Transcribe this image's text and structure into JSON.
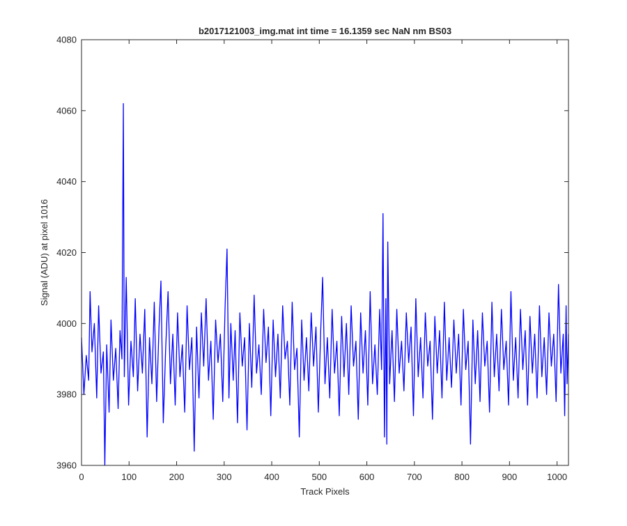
{
  "chart_data": {
    "type": "line",
    "title": "b2017121003_img.mat int time = 16.1359 sec  NaN nm BS03",
    "xlabel": "Track Pixels",
    "ylabel": "Signal (ADU) at pixel 1016",
    "xlim": [
      0,
      1024
    ],
    "ylim": [
      3960,
      4080
    ],
    "xticks": [
      0,
      100,
      200,
      300,
      400,
      500,
      600,
      700,
      800,
      900,
      1000
    ],
    "yticks": [
      3960,
      3980,
      4000,
      4020,
      4040,
      4060,
      4080
    ],
    "grid": false,
    "legend": "none",
    "series": [
      {
        "color": "#0000ff",
        "points": [
          [
            0,
            3996
          ],
          [
            5,
            3980
          ],
          [
            10,
            3991
          ],
          [
            15,
            3984
          ],
          [
            18,
            4009
          ],
          [
            22,
            3992
          ],
          [
            27,
            4000
          ],
          [
            32,
            3979
          ],
          [
            36,
            4005
          ],
          [
            41,
            3986
          ],
          [
            46,
            3992
          ],
          [
            49,
            3960
          ],
          [
            53,
            3994
          ],
          [
            58,
            3975
          ],
          [
            62,
            4001
          ],
          [
            67,
            3984
          ],
          [
            72,
            3993
          ],
          [
            77,
            3976
          ],
          [
            81,
            3998
          ],
          [
            85,
            3990
          ],
          [
            88,
            4062
          ],
          [
            90,
            3985
          ],
          [
            94,
            4013
          ],
          [
            99,
            3977
          ],
          [
            104,
            3995
          ],
          [
            109,
            3985
          ],
          [
            113,
            4007
          ],
          [
            118,
            3981
          ],
          [
            123,
            3997
          ],
          [
            128,
            3986
          ],
          [
            133,
            4004
          ],
          [
            138,
            3968
          ],
          [
            143,
            3996
          ],
          [
            148,
            3983
          ],
          [
            153,
            4006
          ],
          [
            158,
            3978
          ],
          [
            163,
            3999
          ],
          [
            167,
            4012
          ],
          [
            172,
            3972
          ],
          [
            177,
            3993
          ],
          [
            182,
            4009
          ],
          [
            187,
            3983
          ],
          [
            192,
            3997
          ],
          [
            197,
            3977
          ],
          [
            202,
            4003
          ],
          [
            207,
            3985
          ],
          [
            212,
            3994
          ],
          [
            217,
            3975
          ],
          [
            222,
            4005
          ],
          [
            227,
            3987
          ],
          [
            232,
            3996
          ],
          [
            237,
            3964
          ],
          [
            242,
            3999
          ],
          [
            247,
            3979
          ],
          [
            252,
            4003
          ],
          [
            257,
            3988
          ],
          [
            262,
            4007
          ],
          [
            267,
            3984
          ],
          [
            272,
            3995
          ],
          [
            277,
            3973
          ],
          [
            282,
            4001
          ],
          [
            287,
            3989
          ],
          [
            292,
            3997
          ],
          [
            297,
            3978
          ],
          [
            302,
            4005
          ],
          [
            306,
            4021
          ],
          [
            310,
            3979
          ],
          [
            314,
            4000
          ],
          [
            319,
            3984
          ],
          [
            323,
            3998
          ],
          [
            328,
            3972
          ],
          [
            333,
            4003
          ],
          [
            338,
            3988
          ],
          [
            343,
            3996
          ],
          [
            348,
            3970
          ],
          [
            353,
            4000
          ],
          [
            358,
            3982
          ],
          [
            363,
            4008
          ],
          [
            368,
            3986
          ],
          [
            373,
            3994
          ],
          [
            378,
            3980
          ],
          [
            383,
            4004
          ],
          [
            388,
            3989
          ],
          [
            393,
            3999
          ],
          [
            398,
            3974
          ],
          [
            403,
            4001
          ],
          [
            408,
            3985
          ],
          [
            413,
            3997
          ],
          [
            418,
            3979
          ],
          [
            423,
            4005
          ],
          [
            428,
            3990
          ],
          [
            433,
            3995
          ],
          [
            438,
            3977
          ],
          [
            443,
            4006
          ],
          [
            448,
            3987
          ],
          [
            453,
            3993
          ],
          [
            458,
            3968
          ],
          [
            463,
            4001
          ],
          [
            468,
            3984
          ],
          [
            473,
            3996
          ],
          [
            478,
            3981
          ],
          [
            483,
            4003
          ],
          [
            488,
            3988
          ],
          [
            493,
            3999
          ],
          [
            498,
            3975
          ],
          [
            503,
            3998
          ],
          [
            507,
            4013
          ],
          [
            512,
            3983
          ],
          [
            517,
            3996
          ],
          [
            522,
            3979
          ],
          [
            527,
            4004
          ],
          [
            532,
            3986
          ],
          [
            537,
            3995
          ],
          [
            542,
            3974
          ],
          [
            547,
            4002
          ],
          [
            552,
            3985
          ],
          [
            557,
            4000
          ],
          [
            562,
            3980
          ],
          [
            567,
            4005
          ],
          [
            572,
            3988
          ],
          [
            577,
            3995
          ],
          [
            582,
            3973
          ],
          [
            587,
            4003
          ],
          [
            592,
            3986
          ],
          [
            597,
            3998
          ],
          [
            602,
            3977
          ],
          [
            607,
            4009
          ],
          [
            612,
            3983
          ],
          [
            617,
            3994
          ],
          [
            622,
            3980
          ],
          [
            627,
            4004
          ],
          [
            631,
            3987
          ],
          [
            634,
            4031
          ],
          [
            637,
            3968
          ],
          [
            640,
            4007
          ],
          [
            642,
            3966
          ],
          [
            644,
            4023
          ],
          [
            648,
            3983
          ],
          [
            653,
            3998
          ],
          [
            658,
            3978
          ],
          [
            663,
            4004
          ],
          [
            668,
            3986
          ],
          [
            673,
            3995
          ],
          [
            678,
            3981
          ],
          [
            683,
            4003
          ],
          [
            688,
            3989
          ],
          [
            693,
            3999
          ],
          [
            698,
            3974
          ],
          [
            703,
            4007
          ],
          [
            708,
            3985
          ],
          [
            713,
            3996
          ],
          [
            718,
            3979
          ],
          [
            723,
            4003
          ],
          [
            728,
            3988
          ],
          [
            733,
            3995
          ],
          [
            738,
            3973
          ],
          [
            743,
            4002
          ],
          [
            748,
            3986
          ],
          [
            753,
            3998
          ],
          [
            758,
            3979
          ],
          [
            763,
            4006
          ],
          [
            768,
            3984
          ],
          [
            773,
            3996
          ],
          [
            778,
            3982
          ],
          [
            783,
            4001
          ],
          [
            788,
            3986
          ],
          [
            793,
            3997
          ],
          [
            798,
            3977
          ],
          [
            803,
            4004
          ],
          [
            808,
            3987
          ],
          [
            813,
            3995
          ],
          [
            818,
            3966
          ],
          [
            823,
            4001
          ],
          [
            828,
            3983
          ],
          [
            833,
            3998
          ],
          [
            838,
            3978
          ],
          [
            843,
            4003
          ],
          [
            848,
            3988
          ],
          [
            853,
            3995
          ],
          [
            858,
            3975
          ],
          [
            863,
            4006
          ],
          [
            868,
            3985
          ],
          [
            873,
            3997
          ],
          [
            878,
            3981
          ],
          [
            883,
            4004
          ],
          [
            888,
            3987
          ],
          [
            893,
            3995
          ],
          [
            898,
            3977
          ],
          [
            903,
            4009
          ],
          [
            908,
            3984
          ],
          [
            913,
            3996
          ],
          [
            918,
            3979
          ],
          [
            923,
            4004
          ],
          [
            928,
            3987
          ],
          [
            933,
            3998
          ],
          [
            938,
            3977
          ],
          [
            943,
            4002
          ],
          [
            948,
            3986
          ],
          [
            953,
            3997
          ],
          [
            958,
            3979
          ],
          [
            963,
            4005
          ],
          [
            968,
            3985
          ],
          [
            973,
            3996
          ],
          [
            978,
            3980
          ],
          [
            983,
            4003
          ],
          [
            988,
            3988
          ],
          [
            993,
            3997
          ],
          [
            998,
            3978
          ],
          [
            1003,
            4011
          ],
          [
            1008,
            3986
          ],
          [
            1013,
            3997
          ],
          [
            1016,
            3974
          ],
          [
            1019,
            4005
          ],
          [
            1021,
            3983
          ],
          [
            1024,
            3997
          ]
        ]
      }
    ]
  }
}
